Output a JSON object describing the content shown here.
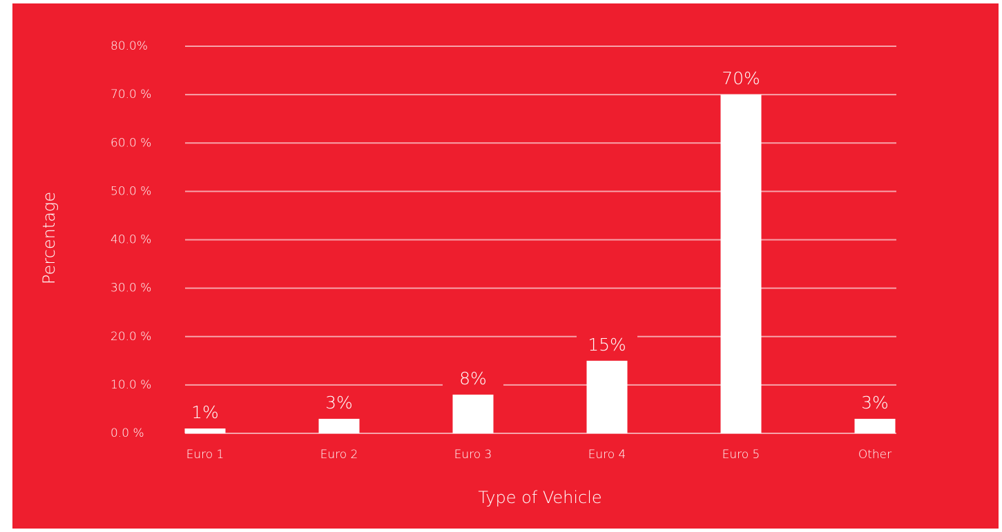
{
  "chart_data": {
    "type": "bar",
    "x_label": "Type of Vehicle",
    "y_label": "Percentage",
    "categories": [
      "Euro 1",
      "Euro 2",
      "Euro 3",
      "Euro 4",
      "Euro 5",
      "Other"
    ],
    "values": [
      1,
      3,
      8,
      15,
      70,
      3
    ],
    "value_labels": [
      "1%",
      "3%",
      "8%",
      "15%",
      "70%",
      "3%"
    ],
    "color": "#ffffff",
    "background": "#ee1e2e",
    "ylim": [
      0,
      80
    ],
    "yticks": [
      {
        "value": 0,
        "label": "0.0 %"
      },
      {
        "value": 10,
        "label": "10.0 %"
      },
      {
        "value": 20,
        "label": "20.0 %"
      },
      {
        "value": 30,
        "label": "30.0 %"
      },
      {
        "value": 40,
        "label": "40.0 %"
      },
      {
        "value": 50,
        "label": "50.0 %"
      },
      {
        "value": 60,
        "label": "60.0 %"
      },
      {
        "value": 70,
        "label": "70.0 %"
      },
      {
        "value": 80,
        "label": "80.0%"
      }
    ],
    "grid": true
  }
}
